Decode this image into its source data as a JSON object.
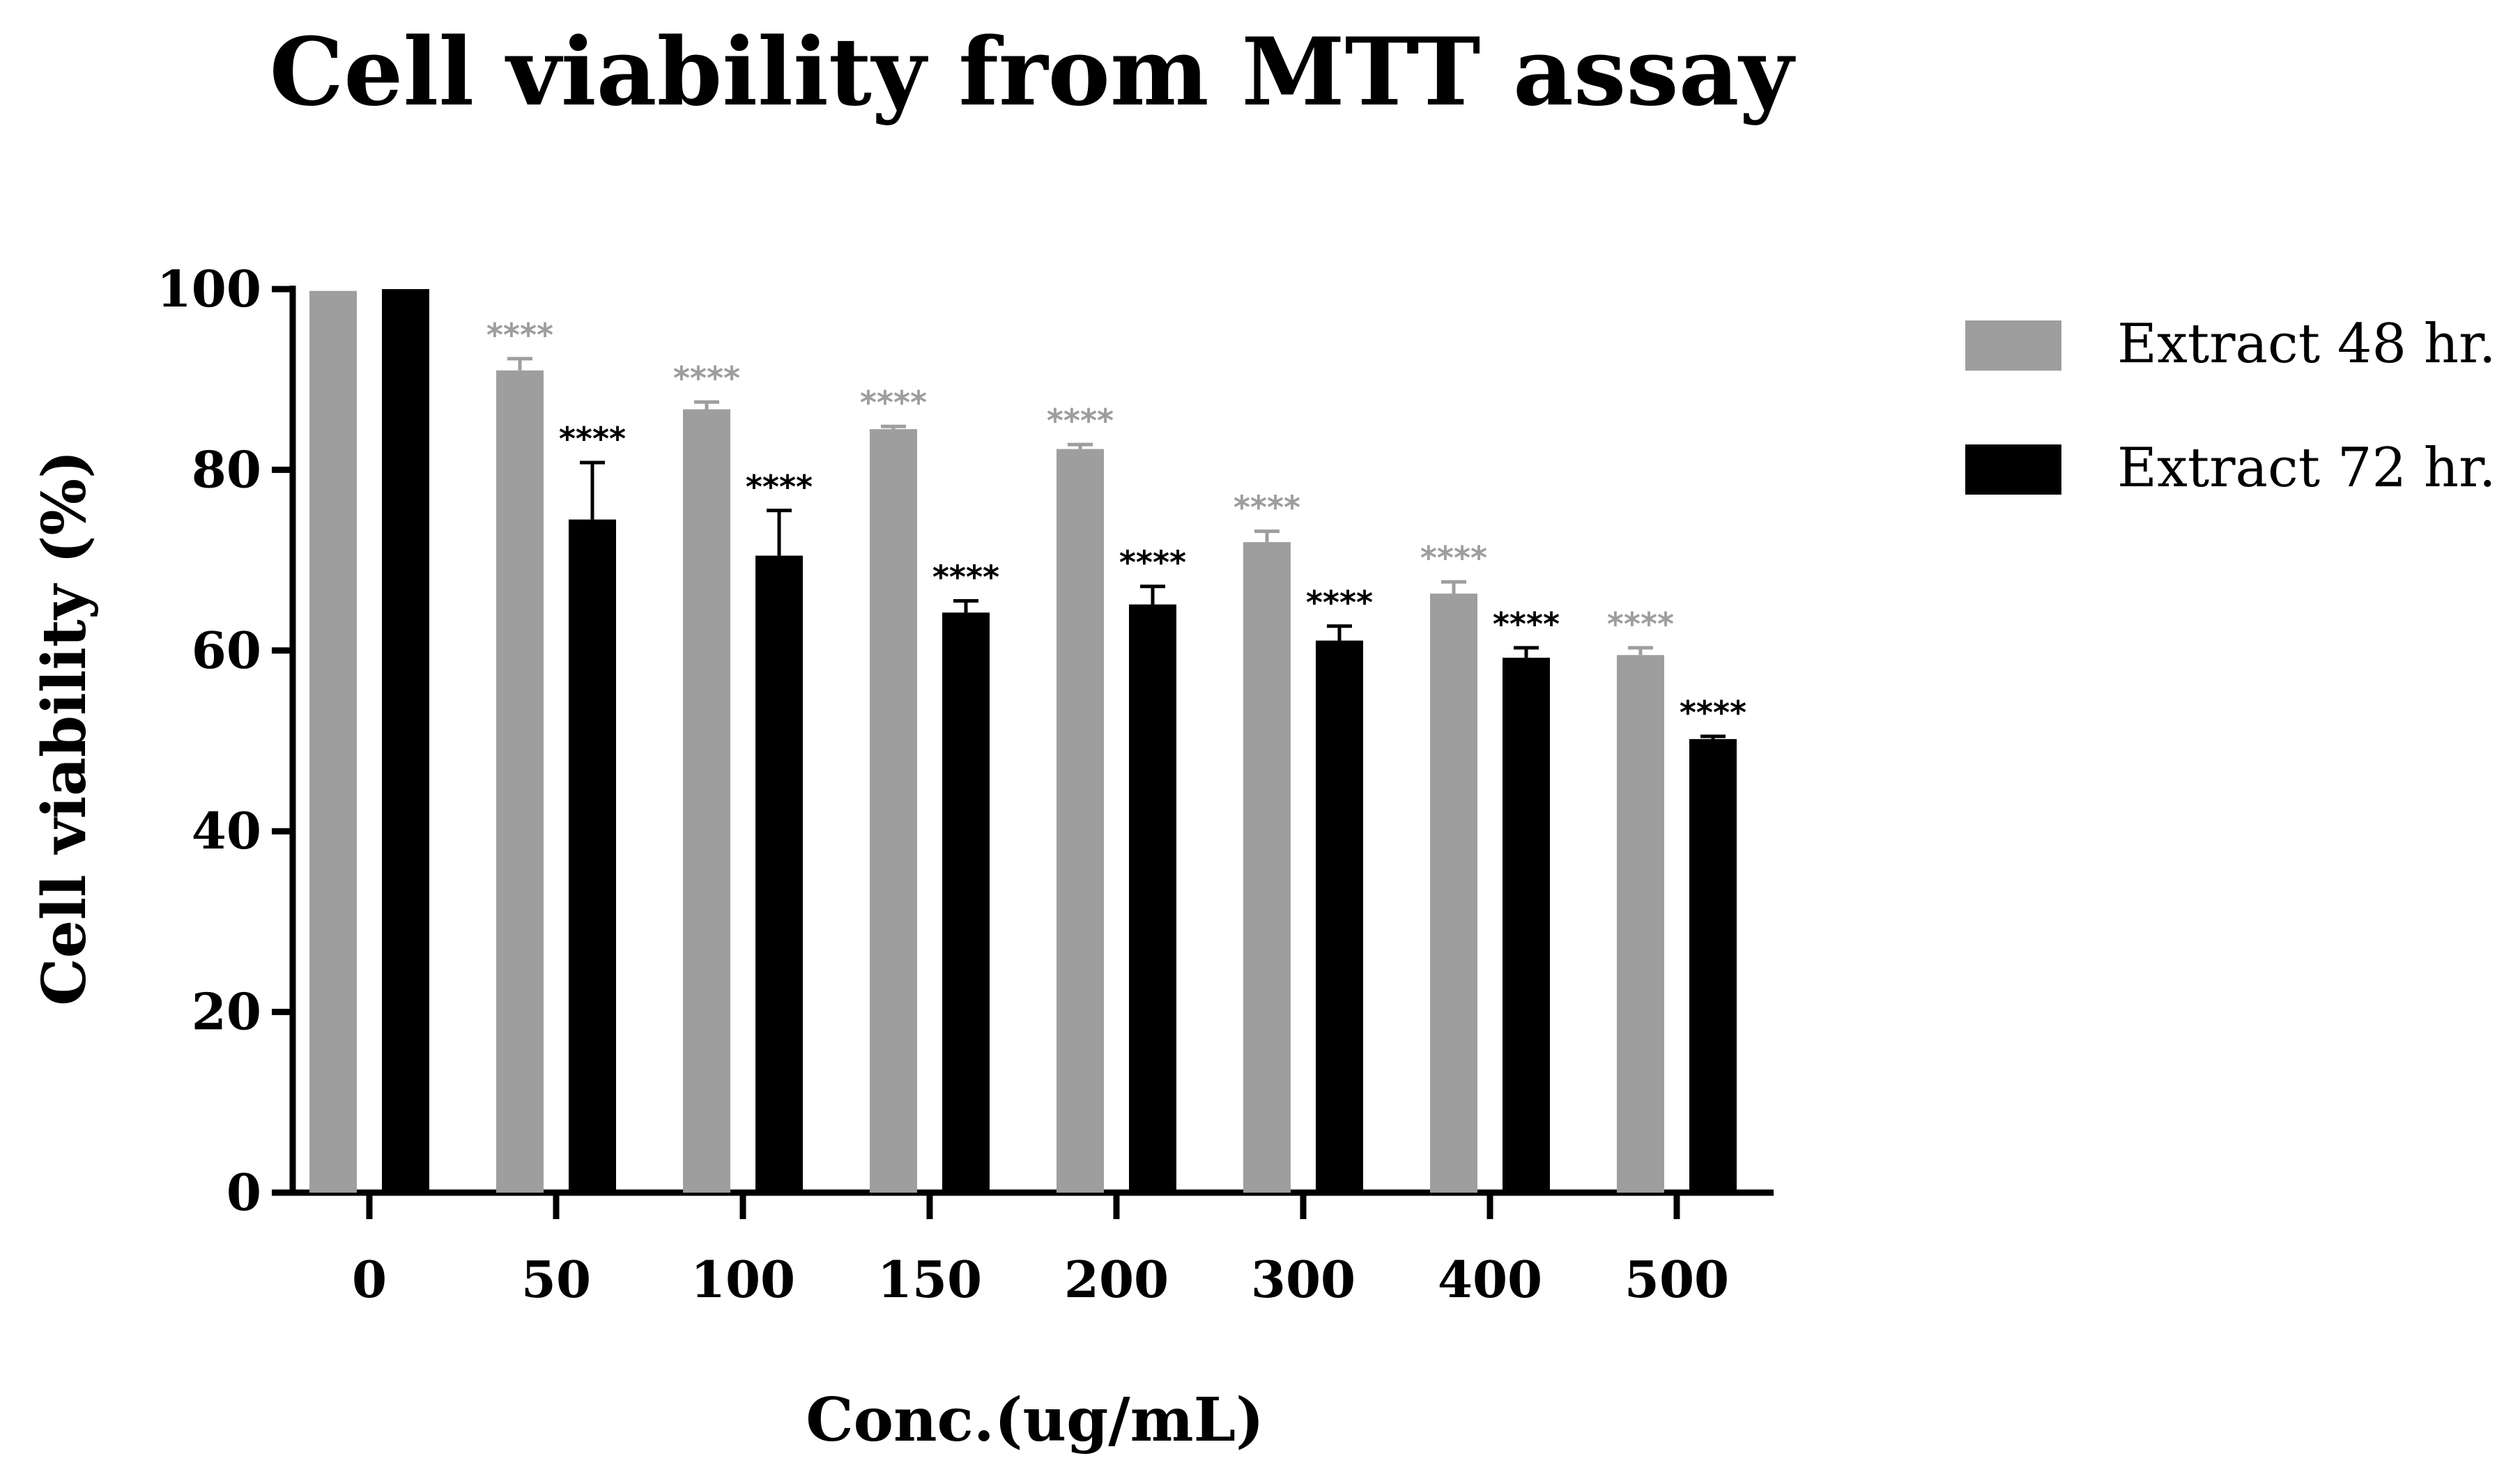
{
  "chart_data": {
    "type": "bar",
    "title": "Cell viability from MTT assay",
    "xlabel": "Conc.(ug/mL)",
    "ylabel": "Cell viability (%)",
    "ylim": [
      0,
      100
    ],
    "yticks": [
      0,
      20,
      40,
      60,
      80,
      100
    ],
    "categories": [
      "0",
      "50",
      "100",
      "150",
      "200",
      "300",
      "400",
      "500"
    ],
    "series": [
      {
        "name": "Extract 48 hr.",
        "color": "#9e9e9e",
        "values": [
          99.8,
          91,
          86.7,
          84.5,
          82.3,
          72,
          66.3,
          59.5
        ],
        "errors": [
          0,
          1.3,
          0.8,
          0.3,
          0.5,
          1.2,
          1.3,
          0.8
        ],
        "significance": [
          "",
          "****",
          "****",
          "****",
          "****",
          "****",
          "****",
          "****"
        ]
      },
      {
        "name": "Extract 72 hr.",
        "color": "#000000",
        "values": [
          100,
          74.5,
          70.5,
          64.2,
          65.1,
          61.1,
          59.2,
          50.2
        ],
        "errors": [
          0,
          6.3,
          5,
          1.3,
          2,
          1.6,
          1.1,
          0.3
        ],
        "significance": [
          "",
          "****",
          "****",
          "****",
          "****",
          "****",
          "****",
          "****"
        ]
      }
    ],
    "legend": "right",
    "grid": false
  }
}
